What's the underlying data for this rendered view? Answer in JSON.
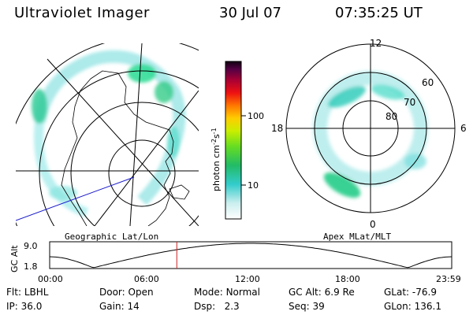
{
  "header": {
    "title": "Ultraviolet Imager",
    "date": "30 Jul 07",
    "time": "07:35:25 UT"
  },
  "left_panel": {
    "caption": "Geographic Lat/Lon"
  },
  "right_panel": {
    "caption": "Apex MLat/MLT",
    "mlt_labels": [
      "12",
      "18",
      "6",
      "0"
    ],
    "lat_labels": [
      "60",
      "70",
      "80"
    ]
  },
  "colorbar": {
    "unit_label": "photon cm",
    "unit_sup1": "-2",
    "unit_mid": "s",
    "unit_sup2": "-1",
    "tick_labels": [
      "100",
      "10"
    ]
  },
  "altitude_plot": {
    "ylabel": "GC Alt",
    "y_ticks": [
      "9.0",
      "1.8"
    ],
    "x_ticks": [
      "00:00",
      "06:00",
      "12:00",
      "18:00",
      "23:59"
    ],
    "marker_time_hours": 7.59
  },
  "info": {
    "row1": [
      {
        "label": "Flt:",
        "value": "LBHL"
      },
      {
        "label": "Door:",
        "value": "Open"
      },
      {
        "label": "Mode:",
        "value": "Normal"
      },
      {
        "label": "GC Alt:",
        "value": "6.9 Re"
      },
      {
        "label": "GLat:",
        "value": "-76.9"
      }
    ],
    "row2": [
      {
        "label": "IP:",
        "value": "36.0"
      },
      {
        "label": "Gain:",
        "value": "14"
      },
      {
        "label": "Dsp:",
        "value": "2.3"
      },
      {
        "label": "Seq:",
        "value": "39"
      },
      {
        "label": "GLon:",
        "value": "136.1"
      }
    ]
  },
  "colors": {
    "marker": "#cc2222",
    "orbit_track": "#1a1acc"
  }
}
